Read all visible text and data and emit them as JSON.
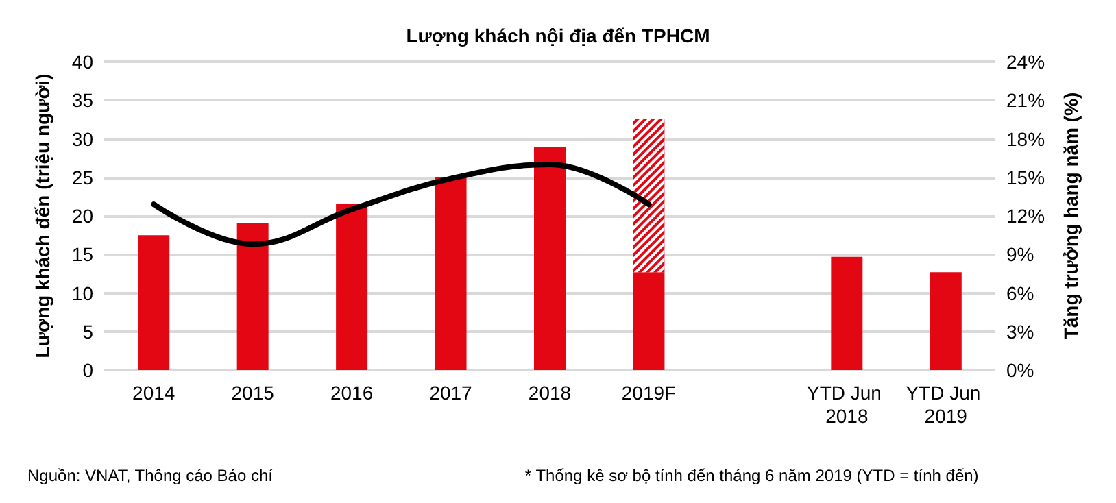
{
  "chart_data": {
    "type": "bar",
    "title": "Lượng khách nội địa đến TPHCM",
    "ylabel": "Lượng khách đến (triệu người)",
    "y2label": "Tăng trưởng hang năm (%)",
    "categories": [
      "2014",
      "2015",
      "2016",
      "2017",
      "2018",
      "2019F",
      null,
      "YTD Jun 2018",
      "YTD Jun 2019"
    ],
    "series": [
      {
        "color": "#e30613",
        "values": [
          17.5,
          19.1,
          21.6,
          25,
          28.9,
          12.7,
          null,
          14.7,
          12.7
        ]
      },
      {
        "color": "#e30613",
        "values": [
          null,
          null,
          null,
          null,
          null,
          19.9,
          null,
          null,
          null
        ]
      },
      {
        "type": "line",
        "axis": "y2",
        "color": "#000000",
        "values": [
          12.9,
          9.8,
          12.5,
          14.9,
          16.0,
          12.9,
          null,
          null,
          null
        ]
      }
    ],
    "stacked": true,
    "marker": "none",
    "line_style": "solid",
    "grid": "y",
    "ylim": [
      0,
      40
    ],
    "yticks": [
      0,
      5,
      10,
      15,
      20,
      25,
      30,
      35,
      40
    ],
    "y2lim": [
      0,
      24
    ],
    "y2ticks": [
      {
        "value": 0,
        "label": "0%"
      },
      {
        "value": 3,
        "label": "3%"
      },
      {
        "value": 6,
        "label": "6%"
      },
      {
        "value": 9,
        "label": "9%"
      },
      {
        "value": 12,
        "label": "12%"
      },
      {
        "value": 15,
        "label": "15%"
      },
      {
        "value": 18,
        "label": "18%"
      },
      {
        "value": 21,
        "label": "21%"
      },
      {
        "value": 24,
        "label": "24%"
      }
    ],
    "annotations": [
      "Nguồn: VNAT, Thông cáo Báo chí",
      "* Thống kê sơ bộ tính đến tháng 6 năm 2019 (YTD = tính đến)"
    ]
  }
}
